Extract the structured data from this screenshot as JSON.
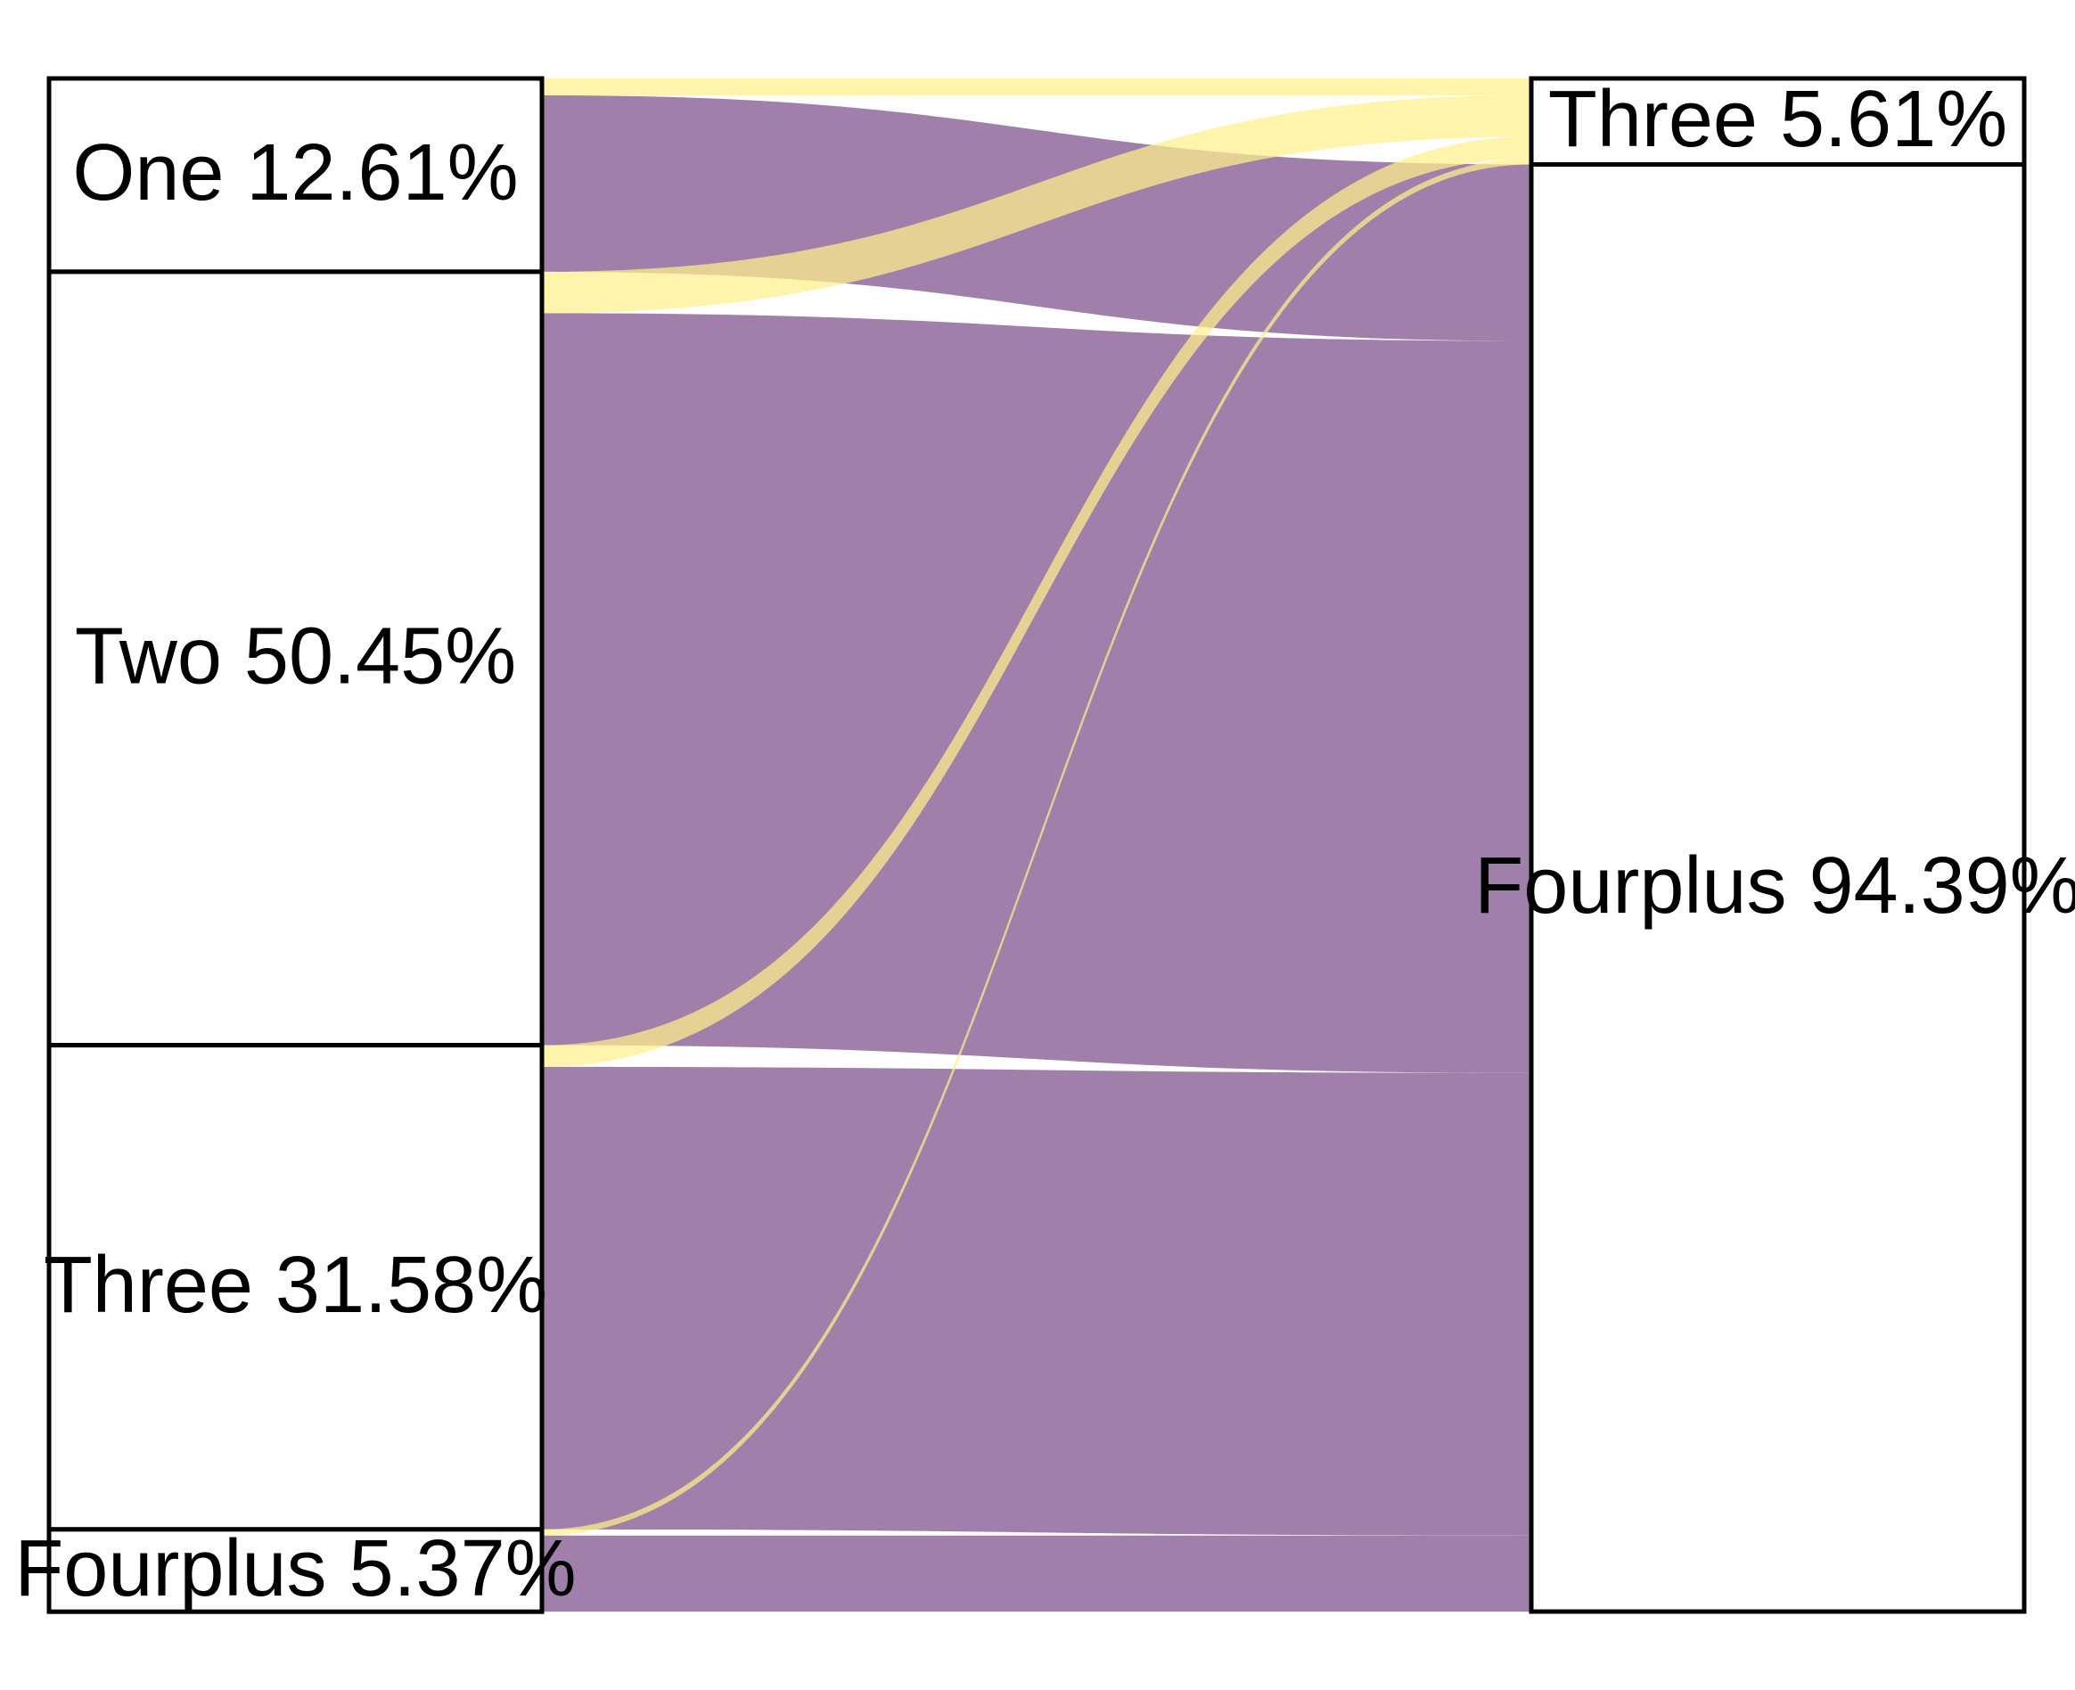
{
  "colors": {
    "to_fourplus": "#a080aa",
    "to_three": "#fff08a",
    "node_fill": "#ffffff",
    "node_stroke": "#000000"
  },
  "left_nodes": [
    {
      "id": "one",
      "label": "One 12.61%",
      "share": 12.61
    },
    {
      "id": "two",
      "label": "Two 50.45%",
      "share": 50.45
    },
    {
      "id": "three",
      "label": "Three 31.58%",
      "share": 31.58
    },
    {
      "id": "fourplus",
      "label": "Fourplus 5.37%",
      "share": 5.37
    }
  ],
  "right_nodes": [
    {
      "id": "three",
      "label": "Three 5.61%",
      "share": 5.61
    },
    {
      "id": "fourplus",
      "label": "Fourplus 94.39%",
      "share": 94.39
    }
  ],
  "flows": [
    {
      "from": "one",
      "to": "three",
      "share": 1.1
    },
    {
      "from": "one",
      "to": "fourplus",
      "share": 11.51
    },
    {
      "from": "two",
      "to": "three",
      "share": 2.7
    },
    {
      "from": "two",
      "to": "fourplus",
      "share": 47.75
    },
    {
      "from": "three",
      "to": "three",
      "share": 1.41
    },
    {
      "from": "three",
      "to": "fourplus",
      "share": 30.17
    },
    {
      "from": "fourplus",
      "to": "three",
      "share": 0.4
    },
    {
      "from": "fourplus",
      "to": "fourplus",
      "share": 4.97
    }
  ]
}
